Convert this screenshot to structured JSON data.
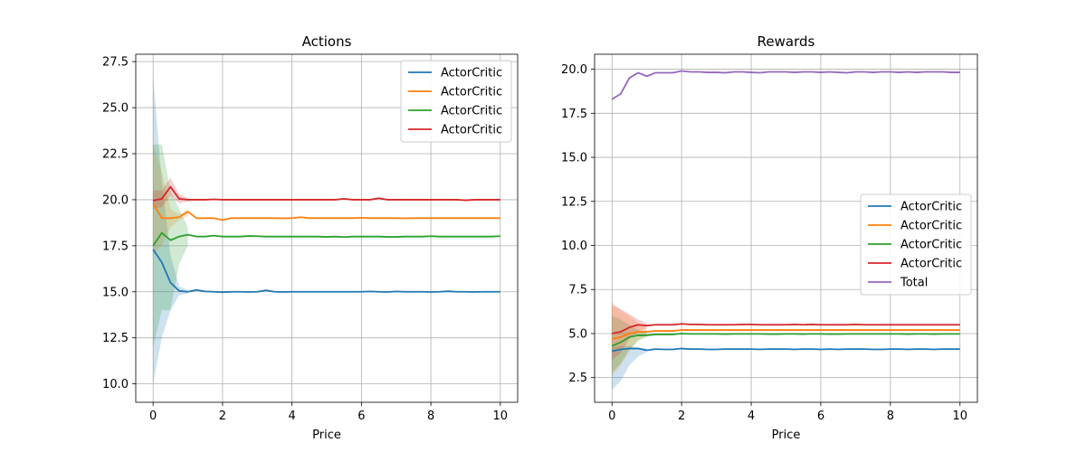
{
  "chart_data": [
    {
      "type": "line",
      "title": "Actions",
      "xlabel": "Price",
      "ylabel": "",
      "xlim": [
        -0.5,
        10.5
      ],
      "ylim": [
        9.0,
        27.9
      ],
      "xticks": [
        0,
        2,
        4,
        6,
        8,
        10
      ],
      "yticks": [
        10.0,
        12.5,
        15.0,
        17.5,
        20.0,
        22.5,
        25.0,
        27.5
      ],
      "ytick_format": 1,
      "grid": true,
      "legend": "top-right",
      "x": [
        0,
        0.25,
        0.5,
        0.75,
        1,
        1.25,
        1.5,
        1.75,
        2,
        2.25,
        2.5,
        2.75,
        3,
        3.25,
        3.5,
        3.75,
        4,
        4.25,
        4.5,
        4.75,
        5,
        5.25,
        5.5,
        5.75,
        6,
        6.25,
        6.5,
        6.75,
        7,
        7.25,
        7.5,
        7.75,
        8,
        8.25,
        8.5,
        8.75,
        9,
        9.25,
        9.5,
        9.75,
        10
      ],
      "series": [
        {
          "name": "ActorCritic",
          "color": "#1f77b4",
          "values": [
            17.3,
            16.6,
            15.5,
            15.05,
            15.0,
            15.1,
            15.02,
            15.0,
            14.98,
            15.0,
            15.0,
            14.99,
            15.0,
            15.08,
            15.0,
            14.99,
            15.0,
            15.0,
            15.0,
            15.0,
            15.0,
            15.0,
            15.0,
            15.0,
            15.0,
            15.02,
            15.0,
            14.99,
            15.02,
            15.0,
            15.0,
            15.0,
            14.99,
            15.0,
            15.03,
            15.0,
            15.0,
            14.99,
            15.0,
            15.0,
            15.0
          ],
          "band": [
            [
              10.0,
              26.7
            ],
            [
              12.5,
              21.0
            ],
            [
              14.0,
              17.0
            ],
            [
              14.8,
              15.3
            ],
            [
              14.9,
              15.1
            ]
          ]
        },
        {
          "name": "ActorCritic",
          "color": "#ff7f0e",
          "values": [
            19.8,
            19.0,
            19.0,
            19.05,
            19.35,
            19.0,
            19.0,
            19.0,
            18.9,
            19.0,
            19.0,
            19.0,
            19.0,
            19.0,
            19.0,
            18.99,
            19.0,
            19.05,
            19.0,
            19.0,
            19.0,
            19.0,
            19.0,
            19.0,
            19.02,
            19.0,
            19.0,
            19.0,
            19.0,
            18.99,
            19.0,
            19.0,
            19.0,
            19.0,
            19.0,
            19.0,
            19.0,
            19.0,
            19.0,
            19.0,
            19.0
          ],
          "band": [
            [
              17.0,
              23.0
            ],
            [
              17.5,
              21.5
            ],
            [
              18.5,
              19.5
            ],
            [
              18.9,
              19.2
            ],
            [
              19.1,
              19.5
            ]
          ]
        },
        {
          "name": "ActorCritic",
          "color": "#2ca02c",
          "values": [
            17.5,
            18.2,
            17.8,
            18.0,
            18.1,
            18.0,
            18.0,
            18.05,
            18.0,
            18.0,
            18.0,
            18.03,
            18.02,
            18.0,
            18.0,
            18.0,
            18.0,
            18.0,
            18.0,
            18.0,
            17.98,
            18.0,
            17.97,
            18.0,
            18.0,
            18.0,
            18.0,
            17.98,
            17.98,
            18.0,
            18.0,
            18.0,
            18.02,
            18.0,
            18.0,
            18.0,
            18.0,
            18.0,
            18.0,
            18.0,
            18.02
          ],
          "band": [
            [
              12.0,
              23.0
            ],
            [
              14.0,
              23.0
            ],
            [
              14.0,
              20.5
            ],
            [
              16.5,
              19.5
            ],
            [
              17.5,
              18.5
            ]
          ]
        },
        {
          "name": "ActorCritic",
          "color": "#d62728",
          "values": [
            19.95,
            20.05,
            20.7,
            20.05,
            20.0,
            20.0,
            20.0,
            20.02,
            20.0,
            20.0,
            20.0,
            20.0,
            20.0,
            20.0,
            20.0,
            20.0,
            20.0,
            20.0,
            20.0,
            20.0,
            20.0,
            20.0,
            20.05,
            20.0,
            20.0,
            20.0,
            20.08,
            20.0,
            20.0,
            20.0,
            20.0,
            20.0,
            20.0,
            20.0,
            20.0,
            20.0,
            19.97,
            20.0,
            20.0,
            20.0,
            20.0
          ],
          "band": [
            [
              19.5,
              20.5
            ],
            [
              19.6,
              20.5
            ],
            [
              20.2,
              21.2
            ],
            [
              19.8,
              20.3
            ],
            [
              19.9,
              20.1
            ]
          ]
        }
      ]
    },
    {
      "type": "line",
      "title": "Rewards",
      "xlabel": "Price",
      "ylabel": "",
      "xlim": [
        -0.5,
        10.5
      ],
      "ylim": [
        1.1,
        20.85
      ],
      "xticks": [
        0,
        2,
        4,
        6,
        8,
        10
      ],
      "yticks": [
        2.5,
        5.0,
        7.5,
        10.0,
        12.5,
        15.0,
        17.5,
        20.0
      ],
      "ytick_format": 1,
      "grid": true,
      "legend": "center-right",
      "x": [
        0,
        0.25,
        0.5,
        0.75,
        1,
        1.25,
        1.5,
        1.75,
        2,
        2.25,
        2.5,
        2.75,
        3,
        3.25,
        3.5,
        3.75,
        4,
        4.25,
        4.5,
        4.75,
        5,
        5.25,
        5.5,
        5.75,
        6,
        6.25,
        6.5,
        6.75,
        7,
        7.25,
        7.5,
        7.75,
        8,
        8.25,
        8.5,
        8.75,
        9,
        9.25,
        9.5,
        9.75,
        10
      ],
      "series": [
        {
          "name": "ActorCritic",
          "color": "#1f77b4",
          "values": [
            4.0,
            4.1,
            4.15,
            4.15,
            4.05,
            4.12,
            4.1,
            4.1,
            4.15,
            4.12,
            4.12,
            4.1,
            4.1,
            4.12,
            4.12,
            4.12,
            4.12,
            4.1,
            4.12,
            4.12,
            4.12,
            4.1,
            4.12,
            4.12,
            4.1,
            4.12,
            4.1,
            4.12,
            4.12,
            4.12,
            4.1,
            4.1,
            4.12,
            4.12,
            4.1,
            4.12,
            4.12,
            4.1,
            4.12,
            4.12,
            4.12
          ],
          "band": [
            [
              1.8,
              4.2
            ],
            [
              2.3,
              4.3
            ],
            [
              3.2,
              4.3
            ],
            [
              3.7,
              4.2
            ],
            [
              3.95,
              4.15
            ]
          ]
        },
        {
          "name": "ActorCritic",
          "color": "#ff7f0e",
          "values": [
            4.7,
            4.8,
            5.0,
            5.1,
            5.1,
            5.15,
            5.15,
            5.15,
            5.2,
            5.2,
            5.2,
            5.2,
            5.2,
            5.2,
            5.2,
            5.2,
            5.2,
            5.2,
            5.2,
            5.2,
            5.2,
            5.2,
            5.2,
            5.2,
            5.2,
            5.2,
            5.2,
            5.2,
            5.2,
            5.2,
            5.2,
            5.2,
            5.2,
            5.2,
            5.2,
            5.2,
            5.2,
            5.2,
            5.2,
            5.2,
            5.2
          ],
          "band": [
            [
              2.6,
              6.8
            ],
            [
              3.2,
              6.3
            ],
            [
              4.0,
              6.0
            ],
            [
              4.6,
              5.6
            ],
            [
              4.9,
              5.3
            ]
          ]
        },
        {
          "name": "ActorCritic",
          "color": "#2ca02c",
          "values": [
            4.3,
            4.5,
            4.8,
            4.9,
            4.9,
            4.95,
            4.95,
            4.95,
            5.0,
            4.98,
            4.98,
            4.98,
            4.98,
            4.97,
            4.98,
            4.98,
            4.98,
            4.98,
            4.97,
            4.97,
            4.98,
            4.98,
            4.97,
            4.98,
            4.98,
            4.97,
            4.97,
            4.98,
            4.98,
            4.98,
            4.98,
            4.98,
            4.98,
            4.98,
            4.97,
            4.98,
            4.98,
            4.97,
            4.98,
            4.98,
            4.98
          ],
          "band": [
            [
              2.8,
              6.0
            ],
            [
              3.3,
              5.8
            ],
            [
              4.1,
              5.5
            ],
            [
              4.6,
              5.2
            ],
            [
              4.8,
              5.05
            ]
          ]
        },
        {
          "name": "ActorCritic",
          "color": "#d62728",
          "values": [
            5.0,
            5.1,
            5.35,
            5.5,
            5.45,
            5.5,
            5.5,
            5.5,
            5.55,
            5.52,
            5.52,
            5.5,
            5.5,
            5.5,
            5.5,
            5.52,
            5.52,
            5.5,
            5.5,
            5.5,
            5.5,
            5.52,
            5.5,
            5.52,
            5.5,
            5.5,
            5.5,
            5.5,
            5.52,
            5.5,
            5.5,
            5.5,
            5.5,
            5.5,
            5.5,
            5.5,
            5.5,
            5.5,
            5.5,
            5.5,
            5.5
          ],
          "band": [
            [
              3.5,
              6.6
            ],
            [
              3.9,
              6.4
            ],
            [
              4.7,
              6.1
            ],
            [
              5.1,
              5.8
            ],
            [
              5.3,
              5.6
            ]
          ]
        },
        {
          "name": "Total",
          "color": "#9467bd",
          "values": [
            18.3,
            18.6,
            19.5,
            19.8,
            19.6,
            19.8,
            19.8,
            19.8,
            19.9,
            19.85,
            19.85,
            19.82,
            19.82,
            19.8,
            19.85,
            19.85,
            19.82,
            19.8,
            19.85,
            19.85,
            19.85,
            19.82,
            19.85,
            19.85,
            19.82,
            19.85,
            19.82,
            19.8,
            19.85,
            19.85,
            19.82,
            19.85,
            19.85,
            19.82,
            19.85,
            19.82,
            19.85,
            19.85,
            19.85,
            19.82,
            19.82
          ],
          "band": null
        }
      ]
    }
  ]
}
